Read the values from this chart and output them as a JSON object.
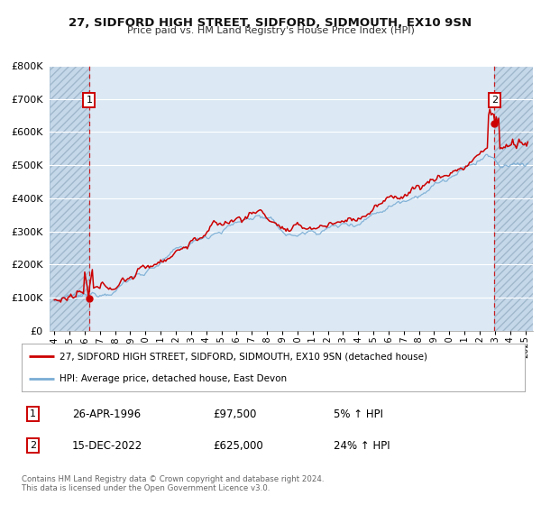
{
  "title": "27, SIDFORD HIGH STREET, SIDFORD, SIDMOUTH, EX10 9SN",
  "subtitle": "Price paid vs. HM Land Registry's House Price Index (HPI)",
  "xlim_start": 1993.7,
  "xlim_end": 2025.5,
  "ylim_min": 0,
  "ylim_max": 800000,
  "yticks": [
    0,
    100000,
    200000,
    300000,
    400000,
    500000,
    600000,
    700000,
    800000
  ],
  "ytick_labels": [
    "£0",
    "£100K",
    "£200K",
    "£300K",
    "£400K",
    "£500K",
    "£600K",
    "£700K",
    "£800K"
  ],
  "xtick_years": [
    1994,
    1995,
    1996,
    1997,
    1998,
    1999,
    2000,
    2001,
    2002,
    2003,
    2004,
    2005,
    2006,
    2007,
    2008,
    2009,
    2010,
    2011,
    2012,
    2013,
    2014,
    2015,
    2016,
    2017,
    2018,
    2019,
    2020,
    2021,
    2022,
    2023,
    2024,
    2025
  ],
  "sale1_year": 1996.29,
  "sale1_price": 97500,
  "sale1_label": "1",
  "sale1_date": "26-APR-1996",
  "sale1_pct": "5%",
  "sale2_year": 2022.96,
  "sale2_price": 625000,
  "sale2_label": "2",
  "sale2_date": "15-DEC-2022",
  "sale2_pct": "24%",
  "red_color": "#cc0000",
  "blue_color": "#7aadd4",
  "bg_color": "#dce9f5",
  "hatch_bg": "#c5d8ea",
  "grid_color": "#ffffff",
  "legend1": "27, SIDFORD HIGH STREET, SIDFORD, SIDMOUTH, EX10 9SN (detached house)",
  "legend2": "HPI: Average price, detached house, East Devon",
  "footer1": "Contains HM Land Registry data © Crown copyright and database right 2024.",
  "footer2": "This data is licensed under the Open Government Licence v3.0."
}
